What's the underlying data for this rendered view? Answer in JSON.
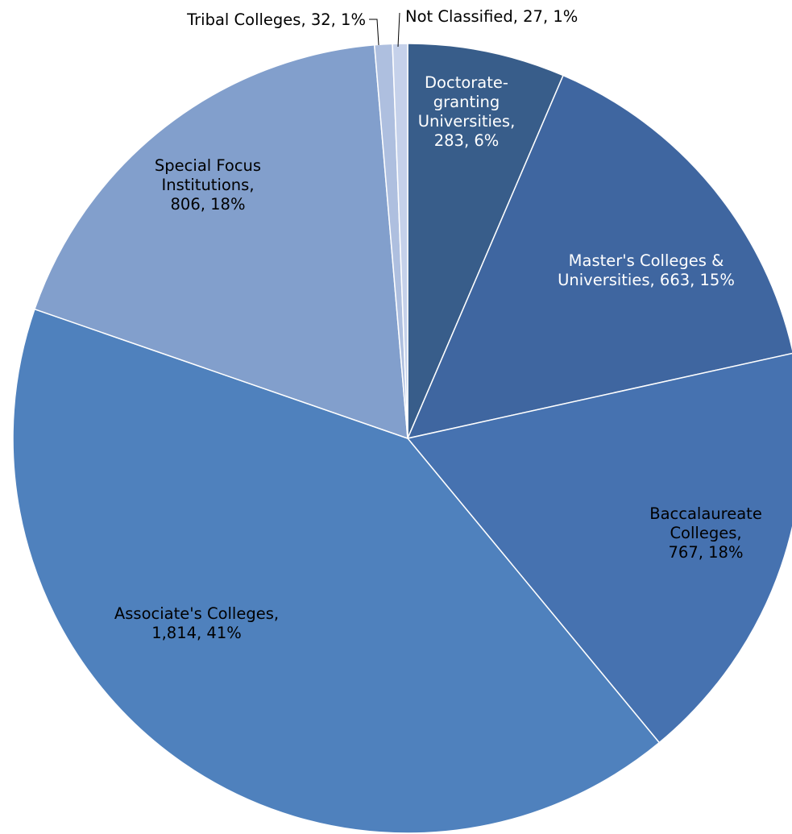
{
  "chart_data": {
    "type": "pie",
    "title": "",
    "slices": [
      {
        "name": "Doctorate-granting Universities",
        "value": 283,
        "value_label": "283",
        "percent_label": "6%",
        "color": "#385d8a",
        "label_color": "#ffffff",
        "label_lines": [
          "Doctorate-",
          "granting",
          "Universities,",
          "283, 6%"
        ]
      },
      {
        "name": "Master's Colleges & Universities",
        "value": 663,
        "value_label": "663",
        "percent_label": "15%",
        "color": "#3f66a0",
        "label_color": "#ffffff",
        "label_lines": [
          "Master's Colleges &",
          "Universities, 663, 15%"
        ]
      },
      {
        "name": "Baccalaureate Colleges",
        "value": 767,
        "value_label": "767",
        "percent_label": "18%",
        "color": "#4672b0",
        "label_color": "#000000",
        "label_lines": [
          "Baccalaureate",
          "Colleges,",
          "767, 18%"
        ]
      },
      {
        "name": "Associate's Colleges",
        "value": 1814,
        "value_label": "1,814",
        "percent_label": "41%",
        "color": "#4f81bd",
        "label_color": "#000000",
        "label_lines": [
          "Associate's Colleges,",
          "1,814, 41%"
        ]
      },
      {
        "name": "Special Focus Institutions",
        "value": 806,
        "value_label": "806",
        "percent_label": "18%",
        "color": "#829fcc",
        "label_color": "#000000",
        "label_lines": [
          "Special Focus",
          "Institutions,",
          "806, 18%"
        ]
      },
      {
        "name": "Tribal Colleges",
        "value": 32,
        "value_label": "32",
        "percent_label": "1%",
        "color": "#aebfdf",
        "label_color": "#000000",
        "label_lines": [
          "Tribal Colleges, 32, 1%"
        ]
      },
      {
        "name": "Not Classified",
        "value": 27,
        "value_label": "27",
        "percent_label": "1%",
        "color": "#c5d1ea",
        "label_color": "#000000",
        "label_lines": [
          "Not Classified, 27, 1%"
        ]
      }
    ],
    "legend": "none",
    "start_angle": "12 o'clock",
    "direction": "clockwise"
  }
}
